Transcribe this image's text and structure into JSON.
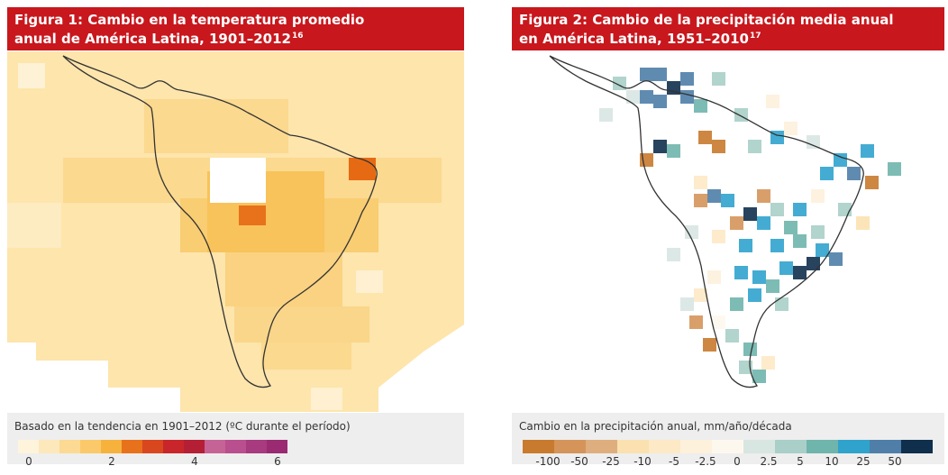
{
  "figures": [
    {
      "title_lines": [
        "Figura 1: Cambio en la temperatura promedio",
        "anual de América Latina, 1901–2012"
      ],
      "title_ref": "16",
      "legend_caption": "Basado en la tendencia en 1901–2012 (ºC durante el período)",
      "legend_colors": [
        "#fef4dc",
        "#fde8bb",
        "#fcda93",
        "#fbc96a",
        "#f6b23c",
        "#e8711c",
        "#d9471f",
        "#c8262a",
        "#b51f35",
        "#c66396",
        "#b94f8e",
        "#a83a7f",
        "#9a2a72"
      ],
      "legend_labels": [
        "0",
        "2",
        "4",
        "6"
      ]
    },
    {
      "title_lines": [
        "Figura 2: Cambio de la precipitación media anual",
        "en América Latina, 1951–2010"
      ],
      "title_ref": "17",
      "legend_caption": "Cambio en la precipitación anual, mm/año/década",
      "legend_colors": [
        "#c87a2e",
        "#d5955a",
        "#dfae7f",
        "#fbe1b0",
        "#fde9c6",
        "#fdf1dc",
        "#fdf8ee",
        "#d8e6e2",
        "#a9cfc8",
        "#6fb5ac",
        "#30a3cd",
        "#4f7ea8",
        "#0f2f4c"
      ],
      "legend_labels": [
        "-100",
        "-50",
        "-25",
        "-10",
        "-5",
        "-2.5",
        "0",
        "2.5",
        "5",
        "10",
        "25",
        "50"
      ]
    }
  ]
}
